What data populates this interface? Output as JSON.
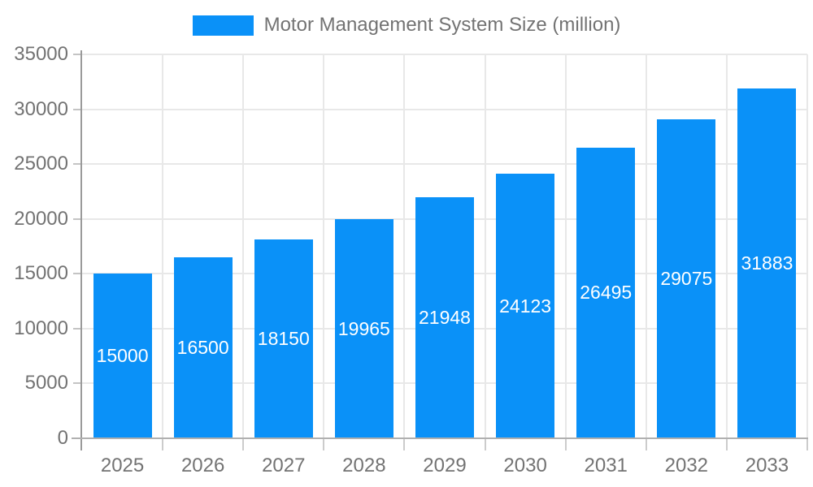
{
  "legend": {
    "label": "Motor Management System Size (million)",
    "swatch_color": "#0a91f8"
  },
  "chart_data": {
    "type": "bar",
    "title": "Motor Management System Size (million)",
    "categories": [
      "2025",
      "2026",
      "2027",
      "2028",
      "2029",
      "2030",
      "2031",
      "2032",
      "2033"
    ],
    "series": [
      {
        "name": "Motor Management System Size (million)",
        "color": "#0a91f8",
        "values": [
          15000,
          16500,
          18150,
          19965,
          21948,
          24123,
          26495,
          29075,
          31883
        ]
      }
    ],
    "xlabel": "",
    "ylabel": "",
    "ylim": [
      0,
      35000
    ],
    "yticks": [
      0,
      5000,
      10000,
      15000,
      20000,
      25000,
      30000,
      35000
    ],
    "grid": true,
    "legend_position": "top",
    "value_labels_position": "inside-center",
    "value_label_color": "#ffffff"
  },
  "colors": {
    "bar": "#0a91f8",
    "axis_text": "#737373",
    "grid_line": "#e8e8e8",
    "axis_line": "#9a9a9a",
    "baseline": "#b0b0b0",
    "background": "#ffffff"
  }
}
